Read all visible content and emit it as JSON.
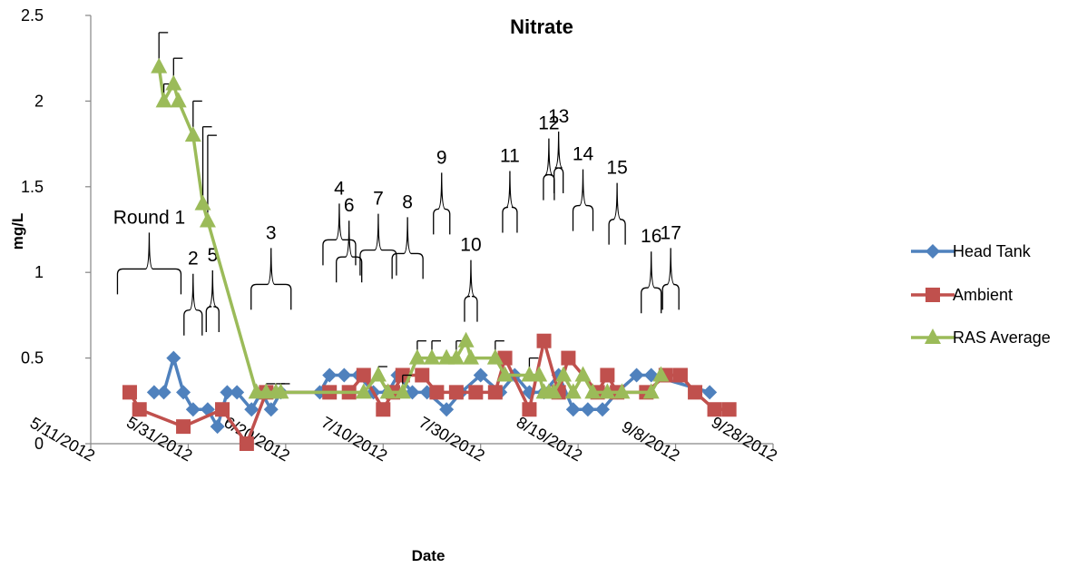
{
  "chart_data": {
    "type": "scatter",
    "title": "Nitrate",
    "xlabel": "Date",
    "ylabel": "mg/L",
    "xlim": [
      "2012-05-11",
      "2012-09-28"
    ],
    "ylim": [
      0,
      2.5
    ],
    "x_ticks": [
      "5/11/2012",
      "5/31/2012",
      "6/20/2012",
      "7/10/2012",
      "7/30/2012",
      "8/19/2012",
      "9/8/2012",
      "9/28/2012"
    ],
    "y_ticks": [
      "0",
      "0.5",
      "1",
      "1.5",
      "2",
      "2.5"
    ],
    "grid": false,
    "legend_position": "right",
    "series": [
      {
        "name": "Head Tank",
        "color": "#4F81BD",
        "marker": "diamond",
        "points": [
          {
            "x": "2012-05-24",
            "y": 0.3
          },
          {
            "x": "2012-05-26",
            "y": 0.3
          },
          {
            "x": "2012-05-28",
            "y": 0.5
          },
          {
            "x": "2012-05-30",
            "y": 0.3
          },
          {
            "x": "2012-06-01",
            "y": 0.2
          },
          {
            "x": "2012-06-04",
            "y": 0.2
          },
          {
            "x": "2012-06-06",
            "y": 0.1
          },
          {
            "x": "2012-06-08",
            "y": 0.3
          },
          {
            "x": "2012-06-10",
            "y": 0.3
          },
          {
            "x": "2012-06-13",
            "y": 0.2
          },
          {
            "x": "2012-06-15",
            "y": 0.3
          },
          {
            "x": "2012-06-17",
            "y": 0.2
          },
          {
            "x": "2012-06-19",
            "y": 0.3
          },
          {
            "x": "2012-06-27",
            "y": 0.3
          },
          {
            "x": "2012-06-29",
            "y": 0.4
          },
          {
            "x": "2012-07-02",
            "y": 0.4
          },
          {
            "x": "2012-07-05",
            "y": 0.4
          },
          {
            "x": "2012-07-08",
            "y": 0.3
          },
          {
            "x": "2012-07-11",
            "y": 0.3
          },
          {
            "x": "2012-07-13",
            "y": 0.4
          },
          {
            "x": "2012-07-16",
            "y": 0.3
          },
          {
            "x": "2012-07-19",
            "y": 0.3
          },
          {
            "x": "2012-07-23",
            "y": 0.2
          },
          {
            "x": "2012-07-26",
            "y": 0.3
          },
          {
            "x": "2012-07-30",
            "y": 0.4
          },
          {
            "x": "2012-08-03",
            "y": 0.3
          },
          {
            "x": "2012-08-06",
            "y": 0.4
          },
          {
            "x": "2012-08-09",
            "y": 0.3
          },
          {
            "x": "2012-08-12",
            "y": 0.3
          },
          {
            "x": "2012-08-15",
            "y": 0.4
          },
          {
            "x": "2012-08-18",
            "y": 0.2
          },
          {
            "x": "2012-08-21",
            "y": 0.2
          },
          {
            "x": "2012-08-24",
            "y": 0.2
          },
          {
            "x": "2012-08-27",
            "y": 0.3
          },
          {
            "x": "2012-08-31",
            "y": 0.4
          },
          {
            "x": "2012-09-03",
            "y": 0.4
          },
          {
            "x": "2012-09-15",
            "y": 0.3
          }
        ]
      },
      {
        "name": "Ambient",
        "color": "#C0504D",
        "marker": "square",
        "points": [
          {
            "x": "2012-05-19",
            "y": 0.3
          },
          {
            "x": "2012-05-21",
            "y": 0.2
          },
          {
            "x": "2012-05-30",
            "y": 0.1
          },
          {
            "x": "2012-06-07",
            "y": 0.2
          },
          {
            "x": "2012-06-12",
            "y": 0.0
          },
          {
            "x": "2012-06-16",
            "y": 0.3
          },
          {
            "x": "2012-06-29",
            "y": 0.3
          },
          {
            "x": "2012-07-03",
            "y": 0.3
          },
          {
            "x": "2012-07-06",
            "y": 0.4
          },
          {
            "x": "2012-07-10",
            "y": 0.2
          },
          {
            "x": "2012-07-12",
            "y": 0.3
          },
          {
            "x": "2012-07-14",
            "y": 0.4
          },
          {
            "x": "2012-07-18",
            "y": 0.4
          },
          {
            "x": "2012-07-21",
            "y": 0.3
          },
          {
            "x": "2012-07-25",
            "y": 0.3
          },
          {
            "x": "2012-07-29",
            "y": 0.3
          },
          {
            "x": "2012-08-02",
            "y": 0.3
          },
          {
            "x": "2012-08-04",
            "y": 0.5
          },
          {
            "x": "2012-08-09",
            "y": 0.2
          },
          {
            "x": "2012-08-12",
            "y": 0.6
          },
          {
            "x": "2012-08-15",
            "y": 0.3
          },
          {
            "x": "2012-08-17",
            "y": 0.5
          },
          {
            "x": "2012-08-23",
            "y": 0.3
          },
          {
            "x": "2012-08-25",
            "y": 0.4
          },
          {
            "x": "2012-08-27",
            "y": 0.3
          },
          {
            "x": "2012-09-02",
            "y": 0.3
          },
          {
            "x": "2012-09-06",
            "y": 0.4
          },
          {
            "x": "2012-09-09",
            "y": 0.4
          },
          {
            "x": "2012-09-12",
            "y": 0.3
          },
          {
            "x": "2012-09-16",
            "y": 0.2
          },
          {
            "x": "2012-09-19",
            "y": 0.2
          }
        ]
      },
      {
        "name": "RAS Average",
        "color": "#9BBB59",
        "marker": "triangle",
        "points": [
          {
            "x": "2012-05-25",
            "y": 2.2,
            "err": 0.2
          },
          {
            "x": "2012-05-26",
            "y": 2.0,
            "err": 0.1
          },
          {
            "x": "2012-05-28",
            "y": 2.1,
            "err": 0.15
          },
          {
            "x": "2012-05-29",
            "y": 2.0
          },
          {
            "x": "2012-06-01",
            "y": 1.8,
            "err": 0.2
          },
          {
            "x": "2012-06-03",
            "y": 1.4,
            "err": 0.45
          },
          {
            "x": "2012-06-04",
            "y": 1.3,
            "err": 0.5
          },
          {
            "x": "2012-06-14",
            "y": 0.3
          },
          {
            "x": "2012-06-16",
            "y": 0.3,
            "err": 0.05
          },
          {
            "x": "2012-06-18",
            "y": 0.3,
            "err": 0.05
          },
          {
            "x": "2012-06-19",
            "y": 0.3,
            "err": 0.05
          },
          {
            "x": "2012-07-06",
            "y": 0.3
          },
          {
            "x": "2012-07-09",
            "y": 0.4,
            "err": 0.05
          },
          {
            "x": "2012-07-11",
            "y": 0.3
          },
          {
            "x": "2012-07-14",
            "y": 0.3,
            "err": 0.1
          },
          {
            "x": "2012-07-17",
            "y": 0.5,
            "err": 0.1
          },
          {
            "x": "2012-07-20",
            "y": 0.5,
            "err": 0.1
          },
          {
            "x": "2012-07-23",
            "y": 0.5
          },
          {
            "x": "2012-07-25",
            "y": 0.5,
            "err": 0.1
          },
          {
            "x": "2012-07-27",
            "y": 0.6
          },
          {
            "x": "2012-07-28",
            "y": 0.5
          },
          {
            "x": "2012-08-02",
            "y": 0.5,
            "err": 0.1
          },
          {
            "x": "2012-08-04",
            "y": 0.4
          },
          {
            "x": "2012-08-09",
            "y": 0.4,
            "err": 0.1
          },
          {
            "x": "2012-08-11",
            "y": 0.4
          },
          {
            "x": "2012-08-12",
            "y": 0.3
          },
          {
            "x": "2012-08-13",
            "y": 0.3
          },
          {
            "x": "2012-08-14",
            "y": 0.3
          },
          {
            "x": "2012-08-16",
            "y": 0.4
          },
          {
            "x": "2012-08-18",
            "y": 0.3
          },
          {
            "x": "2012-08-20",
            "y": 0.4
          },
          {
            "x": "2012-08-22",
            "y": 0.3
          },
          {
            "x": "2012-08-25",
            "y": 0.3
          },
          {
            "x": "2012-08-28",
            "y": 0.3
          },
          {
            "x": "2012-09-03",
            "y": 0.3
          },
          {
            "x": "2012-09-05",
            "y": 0.4
          }
        ]
      }
    ],
    "round_labels": [
      {
        "text": "Round 1",
        "x": "2012-05-23",
        "y": 1.02
      },
      {
        "text": "2",
        "x": "2012-06-01",
        "y": 0.78
      },
      {
        "text": "5",
        "x": "2012-06-05",
        "y": 0.8
      },
      {
        "text": "3",
        "x": "2012-06-17",
        "y": 0.93
      },
      {
        "text": "4",
        "x": "2012-07-01",
        "y": 1.19
      },
      {
        "text": "6",
        "x": "2012-07-03",
        "y": 1.09
      },
      {
        "text": "7",
        "x": "2012-07-09",
        "y": 1.13
      },
      {
        "text": "8",
        "x": "2012-07-15",
        "y": 1.11
      },
      {
        "text": "9",
        "x": "2012-07-22",
        "y": 1.37
      },
      {
        "text": "10",
        "x": "2012-07-28",
        "y": 0.86
      },
      {
        "text": "11",
        "x": "2012-08-05",
        "y": 1.38
      },
      {
        "text": "12",
        "x": "2012-08-13",
        "y": 1.57
      },
      {
        "text": "13",
        "x": "2012-08-15",
        "y": 1.61
      },
      {
        "text": "14",
        "x": "2012-08-20",
        "y": 1.39
      },
      {
        "text": "15",
        "x": "2012-08-27",
        "y": 1.31
      },
      {
        "text": "16",
        "x": "2012-09-03",
        "y": 0.91
      },
      {
        "text": "17",
        "x": "2012-09-07",
        "y": 0.93
      }
    ]
  }
}
